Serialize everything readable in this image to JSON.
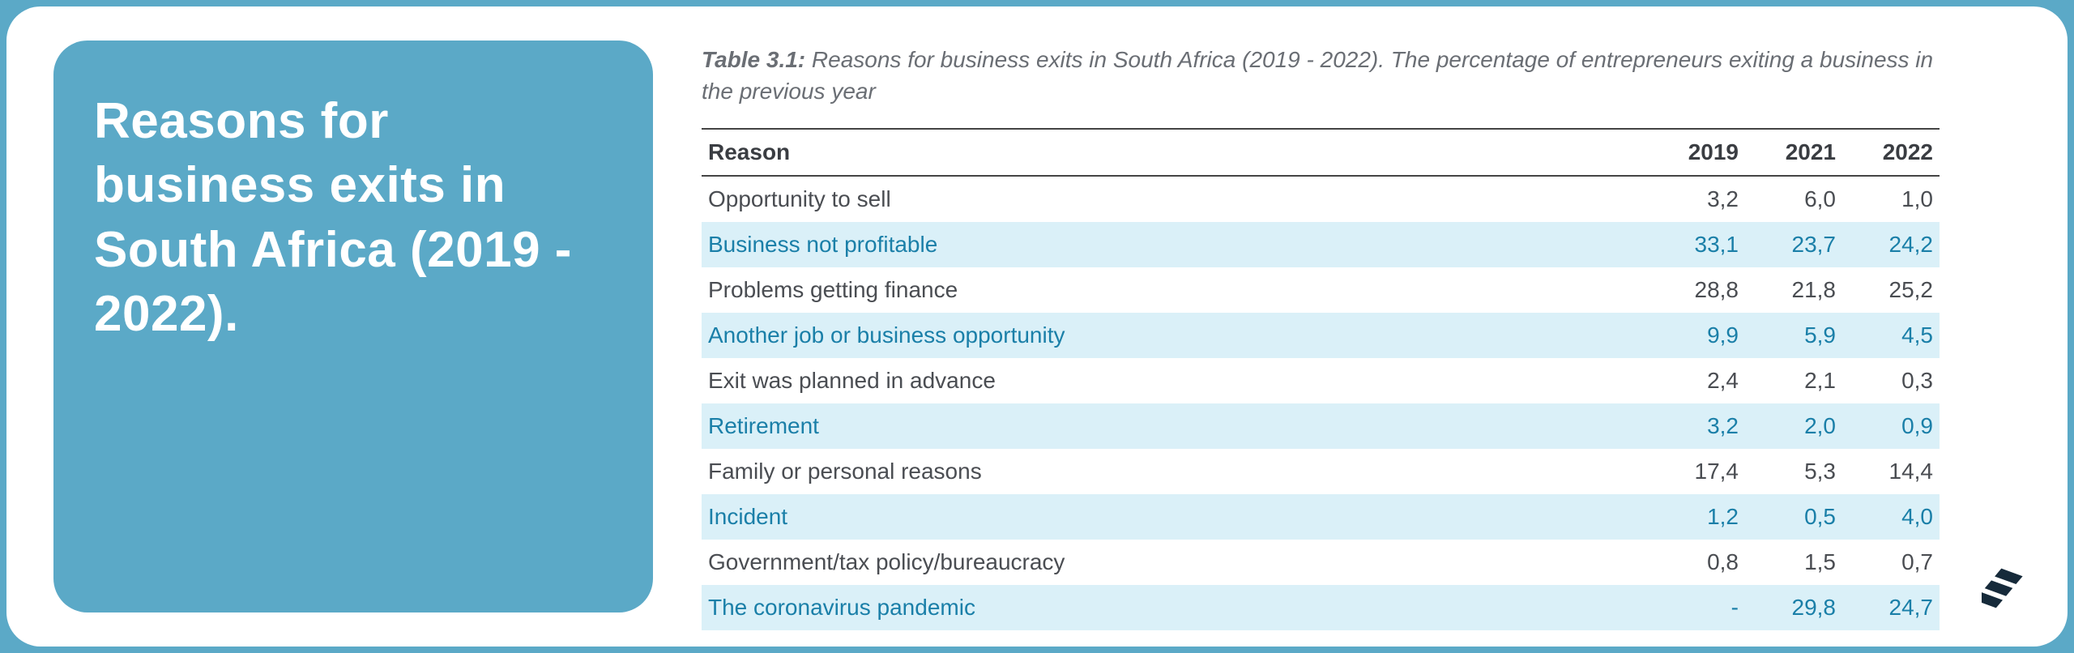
{
  "title": "Reasons for business exits in South Africa (2019 - 2022).",
  "caption_bold": "Table 3.1:",
  "caption_rest": " Reasons for business exits in South Africa (2019 - 2022). The percentage of entrepreneurs exiting a business in the previous year",
  "columns": [
    "Reason",
    "2019",
    "2021",
    "2022"
  ],
  "rows": [
    {
      "reason": "Opportunity to sell",
      "v": [
        "3,2",
        "6,0",
        "1,0"
      ],
      "hl": false
    },
    {
      "reason": "Business not profitable",
      "v": [
        "33,1",
        "23,7",
        "24,2"
      ],
      "hl": true
    },
    {
      "reason": "Problems getting finance",
      "v": [
        "28,8",
        "21,8",
        "25,2"
      ],
      "hl": false
    },
    {
      "reason": "Another job or business opportunity",
      "v": [
        "9,9",
        "5,9",
        "4,5"
      ],
      "hl": true
    },
    {
      "reason": "Exit was planned in advance",
      "v": [
        "2,4",
        "2,1",
        "0,3"
      ],
      "hl": false
    },
    {
      "reason": "Retirement",
      "v": [
        "3,2",
        "2,0",
        "0,9"
      ],
      "hl": true
    },
    {
      "reason": "Family or personal reasons",
      "v": [
        "17,4",
        "5,3",
        "14,4"
      ],
      "hl": false
    },
    {
      "reason": "Incident",
      "v": [
        "1,2",
        "0,5",
        "4,0"
      ],
      "hl": true
    },
    {
      "reason": "Government/tax policy/bureaucracy",
      "v": [
        "0,8",
        "1,5",
        "0,7"
      ],
      "hl": false
    },
    {
      "reason": "The coronavirus pandemic",
      "v": [
        "-",
        "29,8",
        "24,7"
      ],
      "hl": true
    }
  ],
  "style": {
    "accent_bg": "#5ba9c7",
    "highlight_bg": "#daf0f8",
    "highlight_text": "#1a7fa8",
    "body_text": "#4a4d52",
    "caption_text": "#6a6e74",
    "rule_color": "#444444",
    "title_fontsize": 62,
    "body_fontsize": 28,
    "caption_fontsize": 28,
    "card_radius": 42
  },
  "logo_color": "#162a3a"
}
